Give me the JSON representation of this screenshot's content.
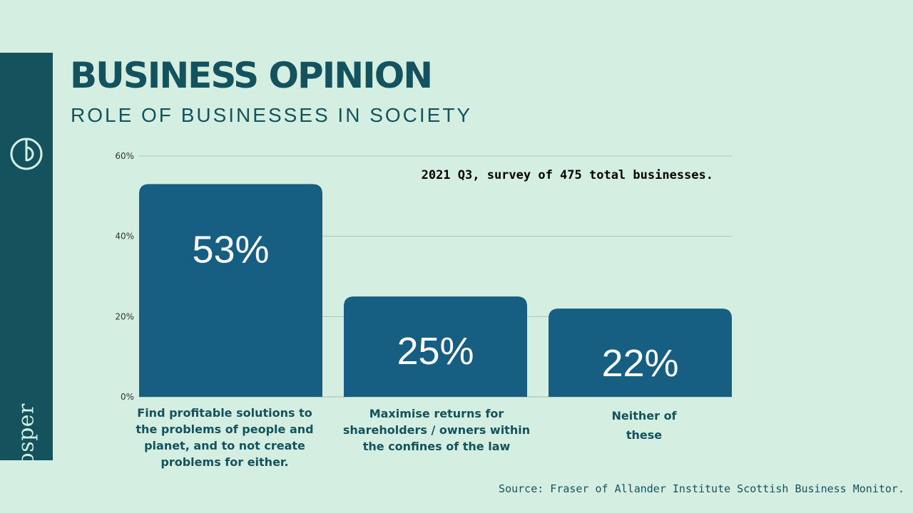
{
  "header": {
    "title": "BUSINESS OPINION",
    "subtitle": "ROLE OF BUSINESSES IN SOCIETY"
  },
  "sidebar": {
    "brand": "prosper",
    "logo_icon": "prosper-logo-icon"
  },
  "note": "2021 Q3, survey of 475 total businesses.",
  "source": "Source: Fraser of Allander Institute Scottish Business Monitor.",
  "colors": {
    "background": "#d4efe2",
    "sidebar": "#14525d",
    "bar": "#165f82",
    "text": "#14525d",
    "grid": "#a9c8b8"
  },
  "chart_data": {
    "type": "bar",
    "categories": [
      "Find profitable solutions to the problems of people and planet, and to not create problems for either.",
      "Maximise returns for shareholders / owners within the confines of the law",
      "Neither of these"
    ],
    "values": [
      53,
      25,
      22
    ],
    "data_labels": [
      "53%",
      "25%",
      "22%"
    ],
    "ylim": [
      0,
      60
    ],
    "yticks": [
      0,
      20,
      40,
      60
    ],
    "ytick_labels": [
      "0%",
      "20%",
      "40%",
      "60%"
    ],
    "grid": true,
    "legend": "none"
  }
}
